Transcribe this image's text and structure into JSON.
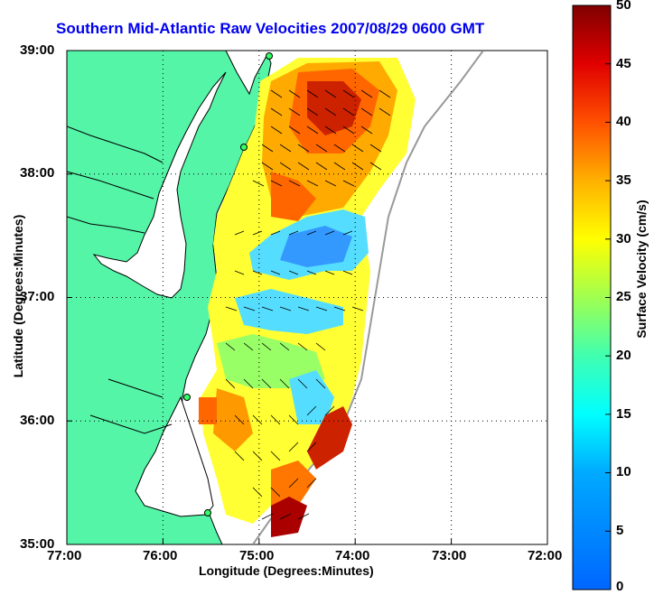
{
  "title": "Southern Mid-Atlantic Raw Velocities 2007/08/29 0600 GMT",
  "x_axis": {
    "label": "Longitude (Degrees:Minutes)",
    "ticks": [
      "77:00",
      "76:00",
      "75:00",
      "74:00",
      "73:00",
      "72:00"
    ]
  },
  "y_axis": {
    "label": "Latitude (Degrees:Minutes)",
    "ticks": [
      "39:00",
      "38:00",
      "37:00",
      "36:00",
      "35:00"
    ]
  },
  "colorbar": {
    "label": "Surface Velocity (cm/s)",
    "ticks": [
      "50",
      "45",
      "40",
      "35",
      "30",
      "25",
      "20",
      "15",
      "10",
      "5",
      "0"
    ],
    "min": 0,
    "max": 50
  },
  "colors": {
    "land": "#55f5a8",
    "title": "#0000ee"
  },
  "chart_data": {
    "type": "heatmap",
    "title": "Southern Mid-Atlantic Raw Velocities 2007/08/29 0600 GMT",
    "xlabel": "Longitude (Degrees:Minutes)",
    "ylabel": "Latitude (Degrees:Minutes)",
    "xlim": [
      -77,
      -72
    ],
    "ylim": [
      35,
      39
    ],
    "colorbar_range": [
      0,
      50
    ],
    "units": "cm/s"
  }
}
